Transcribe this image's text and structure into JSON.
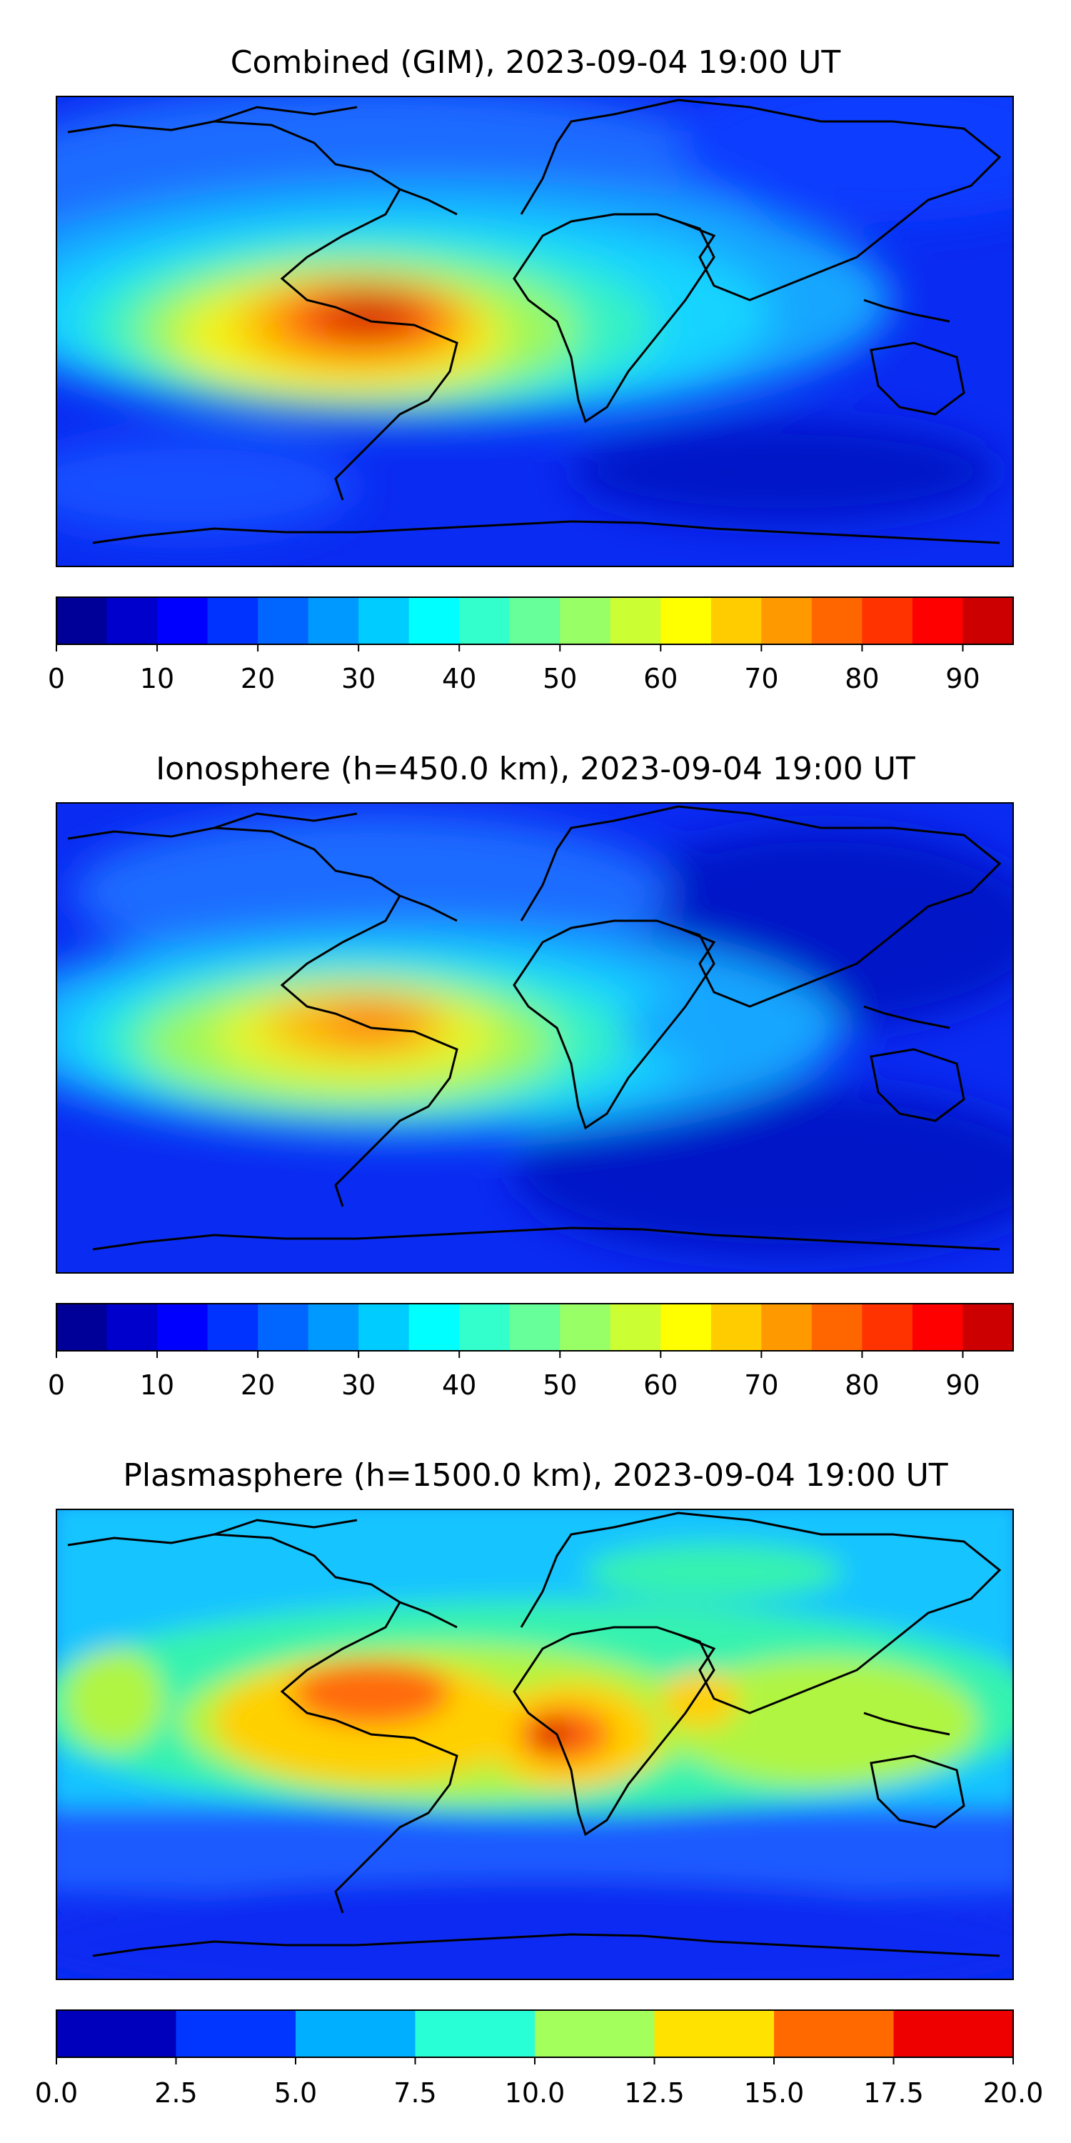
{
  "panels": [
    {
      "title": "Combined (GIM), 2023-09-04 19:00 UT",
      "colorbar_ticks": [
        "0",
        "10",
        "20",
        "30",
        "40",
        "50",
        "60",
        "70",
        "80",
        "90"
      ],
      "colorbar_range": [
        0,
        95
      ],
      "colorbar_step": 5,
      "colormap": "jet",
      "field": "ionospheric total electron content map"
    },
    {
      "title": "Ionosphere  (h=450.0 km), 2023-09-04 19:00 UT",
      "colorbar_ticks": [
        "0",
        "10",
        "20",
        "30",
        "40",
        "50",
        "60",
        "70",
        "80",
        "90"
      ],
      "colorbar_range": [
        0,
        95
      ],
      "colorbar_step": 5,
      "colormap": "jet",
      "field": "ionosphere component map"
    },
    {
      "title": "Plasmasphere (h=1500.0 km), 2023-09-04 19:00 UT",
      "colorbar_ticks": [
        "0.0",
        "2.5",
        "5.0",
        "7.5",
        "10.0",
        "12.5",
        "15.0",
        "17.5",
        "20.0"
      ],
      "colorbar_range": [
        0,
        20
      ],
      "colorbar_step": 2.5,
      "colormap": "jet",
      "field": "plasmasphere component map"
    }
  ],
  "colors": {
    "coastline": "#000000",
    "frame": "#000000",
    "background": "#ffffff"
  }
}
